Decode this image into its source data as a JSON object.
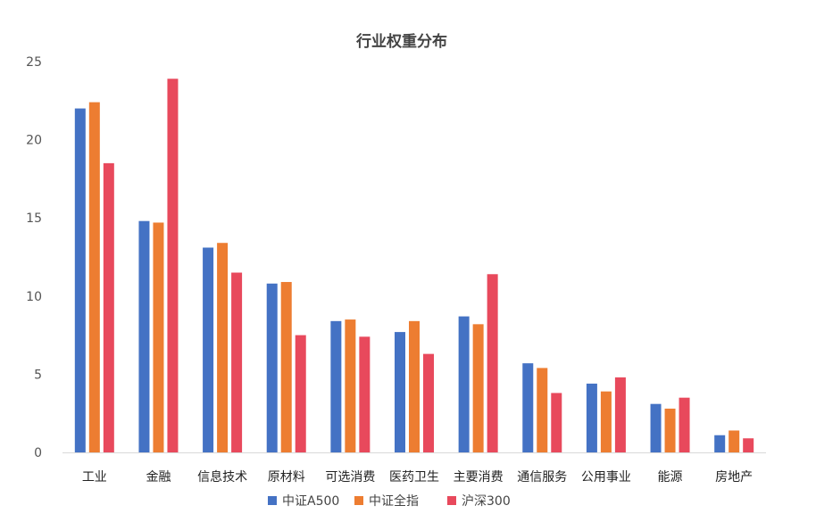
{
  "chart_data": {
    "type": "bar",
    "title": "行业权重分布",
    "xlabel": "",
    "ylabel": "",
    "ylim": [
      0,
      25
    ],
    "yticks": [
      0,
      5,
      10,
      15,
      20,
      25
    ],
    "grid": false,
    "legend_position": "bottom",
    "categories": [
      "工业",
      "金融",
      "信息技术",
      "原材料",
      "可选消费",
      "医药卫生",
      "主要消费",
      "通信服务",
      "公用事业",
      "能源",
      "房地产"
    ],
    "series": [
      {
        "name": "中证A500",
        "color": "#4472C4",
        "values": [
          22.0,
          14.8,
          13.1,
          10.8,
          8.4,
          7.7,
          8.7,
          5.7,
          4.4,
          3.1,
          1.1
        ]
      },
      {
        "name": "中证全指",
        "color": "#ED7D31",
        "values": [
          22.4,
          14.7,
          13.4,
          10.9,
          8.5,
          8.4,
          8.2,
          5.4,
          3.9,
          2.8,
          1.4
        ]
      },
      {
        "name": "沪深300",
        "color": "#E8495C",
        "values": [
          18.5,
          23.9,
          11.5,
          7.5,
          7.4,
          6.3,
          11.4,
          3.8,
          4.8,
          3.5,
          0.9
        ]
      }
    ]
  }
}
